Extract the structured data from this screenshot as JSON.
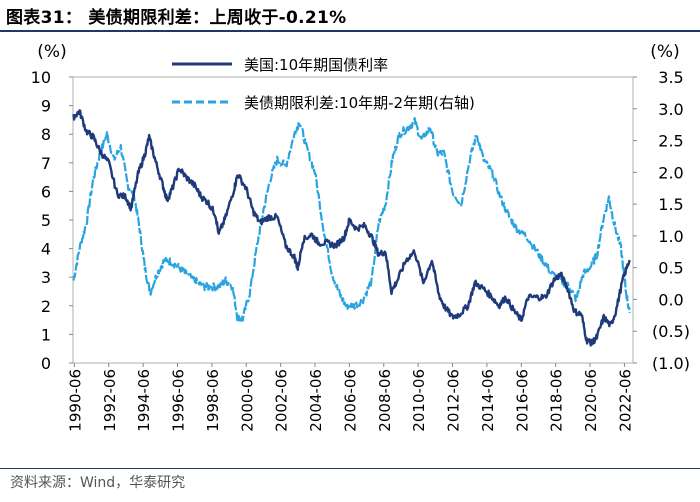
{
  "title": "图表31：  美债期限利差：上周收于-0.21%",
  "source": "资料来源：Wind，华泰研究",
  "chart_data": {
    "type": "line",
    "x_tick_labels": [
      "1990-06",
      "1992-06",
      "1994-06",
      "1996-06",
      "1998-06",
      "2000-06",
      "2002-06",
      "2004-06",
      "2006-06",
      "2008-06",
      "2010-06",
      "2012-06",
      "2014-06",
      "2016-06",
      "2018-06",
      "2020-06",
      "2022-06"
    ],
    "x_ticks": [
      1990.5,
      1992.5,
      1994.5,
      1996.5,
      1998.5,
      2000.5,
      2002.5,
      2004.5,
      2006.5,
      2008.5,
      2010.5,
      2012.5,
      2014.5,
      2016.5,
      2018.5,
      2020.5,
      2022.5
    ],
    "xlim": [
      1990.42,
      2023.0
    ],
    "left_axis": {
      "unit_label": "(%)",
      "ylim": [
        0,
        10
      ],
      "tick_labels": [
        "0",
        "1",
        "2",
        "3",
        "4",
        "5",
        "6",
        "7",
        "8",
        "9",
        "10"
      ]
    },
    "right_axis": {
      "unit_label": "(%)",
      "ylim": [
        -1.0,
        3.5
      ],
      "tick_labels": [
        "(1.0)",
        "(0.5)",
        "0.0",
        "0.5",
        "1.0",
        "1.5",
        "2.0",
        "2.5",
        "3.0",
        "3.5"
      ]
    },
    "colors": {
      "series1": "#1f3a7a",
      "series2": "#2aa4e0"
    },
    "series": [
      {
        "name": "美国:10年期国债利率",
        "axis": "left",
        "style": "solid",
        "x": [
          1990.45,
          1990.8,
          1991.2,
          1991.6,
          1992.0,
          1992.5,
          1993.0,
          1993.5,
          1993.8,
          1994.2,
          1994.6,
          1994.85,
          1995.2,
          1995.6,
          1995.9,
          1996.2,
          1996.6,
          1997.0,
          1997.5,
          1997.9,
          1998.3,
          1998.7,
          1998.9,
          1999.3,
          1999.8,
          2000.0,
          2000.5,
          2000.9,
          2001.3,
          2001.8,
          2002.3,
          2002.8,
          2003.3,
          2003.5,
          2003.8,
          2004.3,
          2004.7,
          2005.2,
          2005.7,
          2006.2,
          2006.5,
          2006.9,
          2007.4,
          2007.8,
          2008.2,
          2008.6,
          2008.95,
          2009.3,
          2009.8,
          2010.3,
          2010.8,
          2011.3,
          2011.7,
          2012.0,
          2012.5,
          2012.9,
          2013.4,
          2013.8,
          2014.3,
          2014.8,
          2015.2,
          2015.6,
          2016.1,
          2016.5,
          2016.9,
          2017.4,
          2017.9,
          2018.4,
          2018.8,
          2019.2,
          2019.6,
          2020.0,
          2020.3,
          2020.6,
          2020.9,
          2021.3,
          2021.7,
          2022.0,
          2022.4,
          2022.8
        ],
        "y": [
          8.6,
          8.8,
          8.1,
          7.9,
          7.4,
          7.0,
          5.9,
          5.8,
          5.4,
          6.6,
          7.3,
          7.9,
          7.1,
          6.3,
          5.7,
          6.1,
          6.8,
          6.5,
          6.2,
          5.8,
          5.6,
          5.2,
          4.5,
          5.1,
          6.1,
          6.6,
          6.1,
          5.3,
          4.9,
          5.1,
          5.1,
          4.1,
          3.7,
          3.3,
          4.3,
          4.5,
          4.2,
          4.2,
          4.1,
          4.4,
          5.0,
          4.7,
          4.8,
          4.4,
          3.8,
          3.9,
          2.5,
          2.9,
          3.6,
          3.9,
          2.8,
          3.6,
          2.4,
          2.0,
          1.6,
          1.7,
          2.0,
          2.8,
          2.6,
          2.3,
          2.0,
          2.3,
          1.8,
          1.5,
          2.3,
          2.3,
          2.3,
          2.9,
          3.1,
          2.6,
          1.8,
          1.7,
          0.8,
          0.7,
          0.9,
          1.6,
          1.3,
          1.8,
          2.9,
          3.6
        ]
      },
      {
        "name": "美债期限利差:10年期-2年期(右轴)",
        "axis": "right",
        "style": "dashed",
        "x": [
          1990.45,
          1990.8,
          1991.2,
          1991.6,
          1992.0,
          1992.4,
          1992.8,
          1993.2,
          1993.6,
          1994.0,
          1994.3,
          1994.6,
          1994.9,
          1995.3,
          1995.7,
          1996.1,
          1996.6,
          1997.0,
          1997.5,
          1998.0,
          1998.4,
          1998.9,
          1999.3,
          1999.7,
          2000.0,
          2000.3,
          2000.7,
          2001.1,
          2001.5,
          2001.9,
          2002.3,
          2002.8,
          2003.3,
          2003.6,
          2004.0,
          2004.5,
          2005.0,
          2005.5,
          2005.9,
          2006.3,
          2006.8,
          2007.3,
          2007.8,
          2008.2,
          2008.6,
          2009.0,
          2009.4,
          2009.9,
          2010.3,
          2010.7,
          2011.2,
          2011.6,
          2012.0,
          2012.5,
          2013.0,
          2013.5,
          2013.9,
          2014.3,
          2014.8,
          2015.3,
          2015.8,
          2016.3,
          2016.8,
          2017.3,
          2017.8,
          2018.3,
          2018.8,
          2019.3,
          2019.7,
          2020.1,
          2020.5,
          2020.9,
          2021.3,
          2021.6,
          2021.9,
          2022.3,
          2022.6,
          2022.8
        ],
        "y": [
          0.3,
          0.8,
          1.2,
          1.9,
          2.3,
          2.6,
          2.2,
          2.4,
          1.8,
          1.6,
          1.1,
          0.5,
          0.1,
          0.4,
          0.6,
          0.6,
          0.5,
          0.4,
          0.3,
          0.2,
          0.2,
          0.2,
          0.3,
          0.2,
          -0.3,
          -0.3,
          0.1,
          0.8,
          1.4,
          1.9,
          2.2,
          2.1,
          2.6,
          2.8,
          2.4,
          2.0,
          1.1,
          0.4,
          0.1,
          -0.1,
          -0.1,
          0.0,
          0.3,
          1.2,
          1.5,
          2.2,
          2.6,
          2.7,
          2.8,
          2.5,
          2.7,
          2.3,
          2.3,
          1.7,
          1.5,
          2.2,
          2.6,
          2.2,
          2.0,
          1.6,
          1.3,
          1.1,
          1.0,
          0.8,
          0.6,
          0.4,
          0.3,
          0.2,
          0.0,
          0.4,
          0.5,
          0.7,
          1.3,
          1.6,
          1.2,
          0.8,
          0.1,
          -0.21
        ]
      }
    ]
  }
}
